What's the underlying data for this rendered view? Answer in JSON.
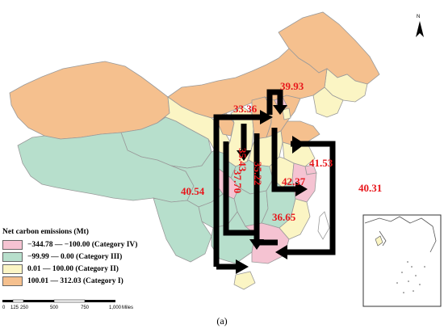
{
  "legend": {
    "title": "Net carbon emissions (Mt)",
    "items": [
      {
        "label": "−344.78 — −100.00 (Category IV)",
        "color": "#f5c3d2"
      },
      {
        "label": "−99.99 — 0.00 (Category III)",
        "color": "#b7dfcc"
      },
      {
        "label": "0.01 — 100.00 (Category II)",
        "color": "#fbf5c4"
      },
      {
        "label": "100.01 — 312.03 (Category I)",
        "color": "#f5c08e"
      }
    ]
  },
  "scale": {
    "ticks": [
      "0",
      "125",
      "250",
      "500",
      "750",
      "1,000"
    ],
    "unit": "Miles"
  },
  "north": {
    "label": "N"
  },
  "flows": [
    {
      "id": "flow-39-93",
      "value": "39.93"
    },
    {
      "id": "flow-33-36",
      "value": "33.36"
    },
    {
      "id": "flow-35-43",
      "value": "35.43"
    },
    {
      "id": "flow-35-22",
      "value": "35.22"
    },
    {
      "id": "flow-37-70",
      "value": "37.70"
    },
    {
      "id": "flow-41-53",
      "value": "41.53"
    },
    {
      "id": "flow-42-37",
      "value": "42.37"
    },
    {
      "id": "flow-40-54",
      "value": "40.54"
    },
    {
      "id": "flow-40-31",
      "value": "40.31"
    },
    {
      "id": "flow-36-65",
      "value": "36.65"
    }
  ],
  "caption": "(a)"
}
